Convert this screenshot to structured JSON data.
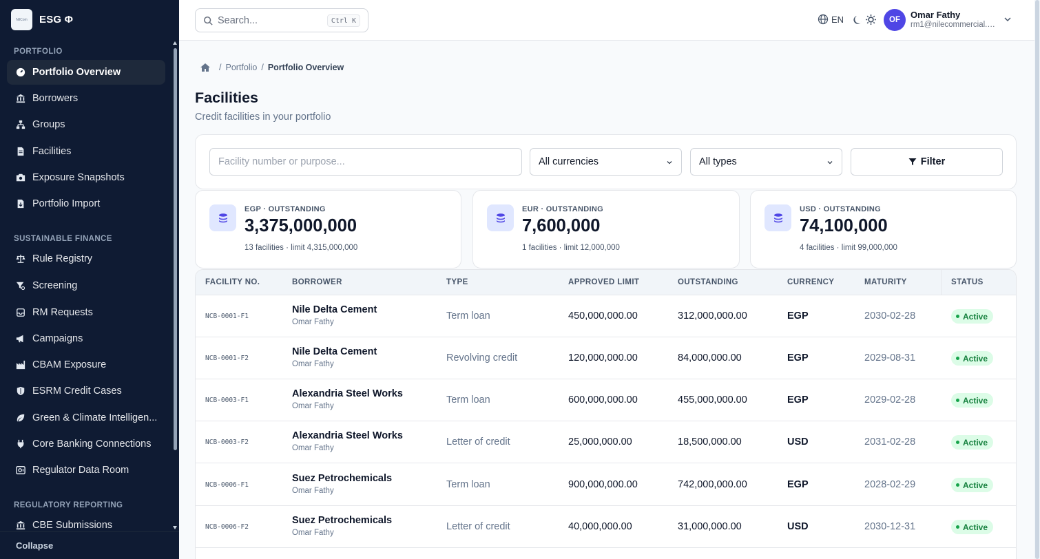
{
  "app": {
    "brand": "ESG Φ",
    "logo_text": "NilCom"
  },
  "sidebar": {
    "sections": [
      {
        "title": "PORTFOLIO",
        "items": [
          {
            "label": "Portfolio Overview",
            "icon": "gauge-icon",
            "active": true
          },
          {
            "label": "Borrowers",
            "icon": "bank-icon"
          },
          {
            "label": "Groups",
            "icon": "hierarchy-icon"
          },
          {
            "label": "Facilities",
            "icon": "document-icon"
          },
          {
            "label": "Exposure Snapshots",
            "icon": "camera-icon"
          },
          {
            "label": "Portfolio Import",
            "icon": "file-import-icon"
          }
        ]
      },
      {
        "title": "SUSTAINABLE FINANCE",
        "items": [
          {
            "label": "Rule Registry",
            "icon": "scale-icon"
          },
          {
            "label": "Screening",
            "icon": "filter-search-icon"
          },
          {
            "label": "RM Requests",
            "icon": "inbox-icon"
          },
          {
            "label": "Campaigns",
            "icon": "megaphone-icon"
          },
          {
            "label": "CBAM Exposure",
            "icon": "factory-icon"
          },
          {
            "label": "ESRM Credit Cases",
            "icon": "shield-icon"
          },
          {
            "label": "Green & Climate Intelligen...",
            "icon": "leaf-icon"
          },
          {
            "label": "Core Banking Connections",
            "icon": "plug-icon"
          },
          {
            "label": "Regulator Data Room",
            "icon": "data-room-icon"
          }
        ]
      },
      {
        "title": "REGULATORY REPORTING",
        "items": [
          {
            "label": "CBE Submissions",
            "icon": "bank-icon"
          }
        ]
      }
    ],
    "collapse_label": "Collapse"
  },
  "topbar": {
    "search_placeholder": "Search...",
    "search_shortcut": "Ctrl K",
    "language": "EN",
    "user": {
      "initials": "OF",
      "name": "Omar Fathy",
      "email": "rm1@nilecommercial.e..."
    }
  },
  "breadcrumb": {
    "items": [
      "Portfolio",
      "Portfolio Overview"
    ]
  },
  "page": {
    "title": "Facilities",
    "subtitle": "Credit facilities in your portfolio"
  },
  "filters": {
    "search_placeholder": "Facility number or purpose...",
    "currency": "All currencies",
    "type": "All types",
    "button": "Filter"
  },
  "stats": [
    {
      "label": "EGP · OUTSTANDING",
      "value": "3,375,000,000",
      "sub": "13 facilities · limit 4,315,000,000"
    },
    {
      "label": "EUR · OUTSTANDING",
      "value": "7,600,000",
      "sub": "1 facilities · limit 12,000,000"
    },
    {
      "label": "USD · OUTSTANDING",
      "value": "74,100,000",
      "sub": "4 facilities · limit 99,000,000"
    }
  ],
  "table": {
    "columns": [
      "FACILITY NO.",
      "BORROWER",
      "TYPE",
      "APPROVED LIMIT",
      "OUTSTANDING",
      "CURRENCY",
      "MATURITY",
      "STATUS"
    ],
    "rows": [
      {
        "facility": "NCB-0001-F1",
        "borrower": "Nile Delta Cement",
        "rm": "Omar Fathy",
        "type": "Term loan",
        "limit": "450,000,000.00",
        "outstanding": "312,000,000.00",
        "currency": "EGP",
        "maturity": "2030-02-28",
        "status": "Active"
      },
      {
        "facility": "NCB-0001-F2",
        "borrower": "Nile Delta Cement",
        "rm": "Omar Fathy",
        "type": "Revolving credit",
        "limit": "120,000,000.00",
        "outstanding": "84,000,000.00",
        "currency": "EGP",
        "maturity": "2029-08-31",
        "status": "Active"
      },
      {
        "facility": "NCB-0003-F1",
        "borrower": "Alexandria Steel Works",
        "rm": "Omar Fathy",
        "type": "Term loan",
        "limit": "600,000,000.00",
        "outstanding": "455,000,000.00",
        "currency": "EGP",
        "maturity": "2029-02-28",
        "status": "Active"
      },
      {
        "facility": "NCB-0003-F2",
        "borrower": "Alexandria Steel Works",
        "rm": "Omar Fathy",
        "type": "Letter of credit",
        "limit": "25,000,000.00",
        "outstanding": "18,500,000.00",
        "currency": "USD",
        "maturity": "2031-02-28",
        "status": "Active"
      },
      {
        "facility": "NCB-0006-F1",
        "borrower": "Suez Petrochemicals",
        "rm": "Omar Fathy",
        "type": "Term loan",
        "limit": "900,000,000.00",
        "outstanding": "742,000,000.00",
        "currency": "EGP",
        "maturity": "2028-02-29",
        "status": "Active"
      },
      {
        "facility": "NCB-0006-F2",
        "borrower": "Suez Petrochemicals",
        "rm": "Omar Fathy",
        "type": "Letter of credit",
        "limit": "40,000,000.00",
        "outstanding": "31,000,000.00",
        "currency": "USD",
        "maturity": "2030-12-31",
        "status": "Active"
      }
    ]
  },
  "colors": {
    "sidebar_bg": "#0f1b33",
    "accent": "#4f46e5",
    "status_active": "#15803d"
  }
}
